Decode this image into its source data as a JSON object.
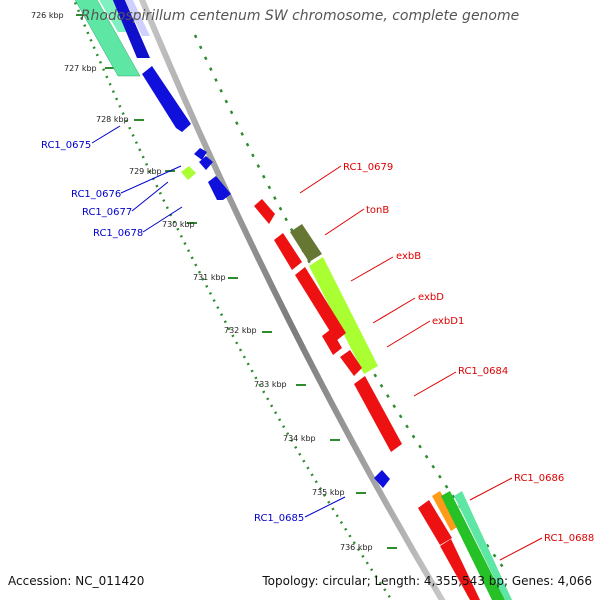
{
  "title": "Rhodospirillum centenum SW chromosome, complete genome",
  "footer": {
    "accession": "Accession: NC_011420",
    "topology": "Topology: circular; Length: 4,355,543 bp; Genes: 4,066"
  },
  "colors": {
    "backbone": "#909090",
    "dotted_track": "#2e8b2e",
    "strand_minus_label": "#0000cc",
    "strand_plus_label": "#dd0000"
  },
  "ruler": {
    "unit": "kbp",
    "ticks": [
      "726 kbp",
      "727 kbp",
      "728 kbp",
      "729 kbp",
      "730 kbp",
      "731 kbp",
      "732 kbp",
      "733 kbp",
      "734 kbp",
      "735 kbp",
      "736 kbp"
    ]
  },
  "gene_labels": [
    {
      "id": "lbl-rc1-0675",
      "text": "RC1_0675",
      "strand": "minus"
    },
    {
      "id": "lbl-rc1-0676",
      "text": "RC1_0676",
      "strand": "minus"
    },
    {
      "id": "lbl-rc1-0677",
      "text": "RC1_0677",
      "strand": "minus"
    },
    {
      "id": "lbl-rc1-0678",
      "text": "RC1_0678",
      "strand": "minus"
    },
    {
      "id": "lbl-rc1-0679",
      "text": "RC1_0679",
      "strand": "plus"
    },
    {
      "id": "lbl-tonb",
      "text": "tonB",
      "strand": "plus"
    },
    {
      "id": "lbl-exbb",
      "text": "exbB",
      "strand": "plus"
    },
    {
      "id": "lbl-exbd",
      "text": "exbD",
      "strand": "plus"
    },
    {
      "id": "lbl-exbd1",
      "text": "exbD1",
      "strand": "plus"
    },
    {
      "id": "lbl-rc1-0684",
      "text": "RC1_0684",
      "strand": "plus"
    },
    {
      "id": "lbl-rc1-0685",
      "text": "RC1_0685",
      "strand": "minus"
    },
    {
      "id": "lbl-rc1-0686",
      "text": "RC1_0686",
      "strand": "plus"
    },
    {
      "id": "lbl-rc1-0688",
      "text": "RC1_0688",
      "strand": "plus"
    }
  ]
}
